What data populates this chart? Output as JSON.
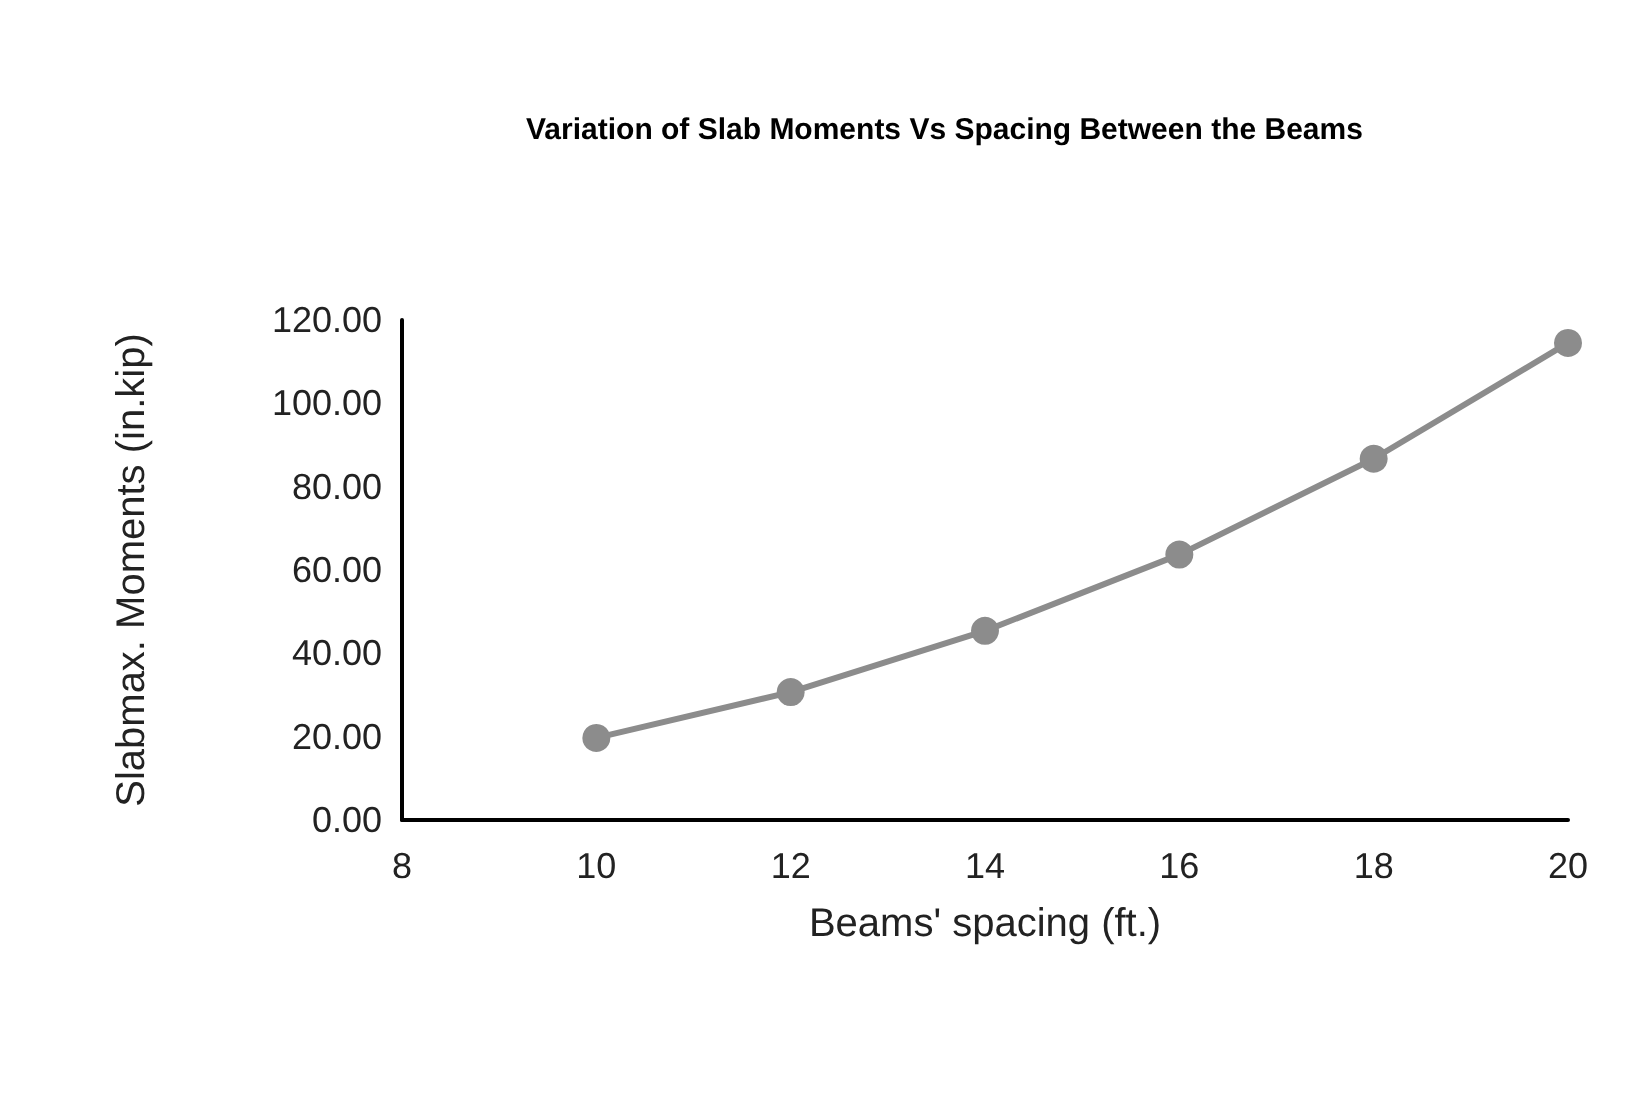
{
  "chart_data": {
    "type": "line",
    "title": "Variation of Slab Moments Vs Spacing Between the Beams",
    "xlabel": "Beams' spacing (ft.)",
    "ylabel": "Slabmax. Moments (in.kip)",
    "x": [
      10,
      12,
      14,
      16,
      18,
      20
    ],
    "series": [
      {
        "color": "#8c8c8c",
        "values": [
          19.7,
          30.7,
          45.4,
          63.7,
          86.7,
          114.5
        ]
      }
    ],
    "xlim": [
      8,
      20
    ],
    "xticks": [
      8,
      10,
      12,
      14,
      16,
      18,
      20
    ],
    "ylim": [
      0,
      120
    ],
    "yticks": [
      {
        "value": 0,
        "label": "0.00"
      },
      {
        "value": 20,
        "label": "20.00"
      },
      {
        "value": 40,
        "label": "40.00"
      },
      {
        "value": 60,
        "label": "60.00"
      },
      {
        "value": 80,
        "label": "80.00"
      },
      {
        "value": 100,
        "label": "100.00"
      },
      {
        "value": 120,
        "label": "120.00"
      }
    ],
    "grid": false,
    "marker": "circle",
    "line_style": "solid"
  }
}
